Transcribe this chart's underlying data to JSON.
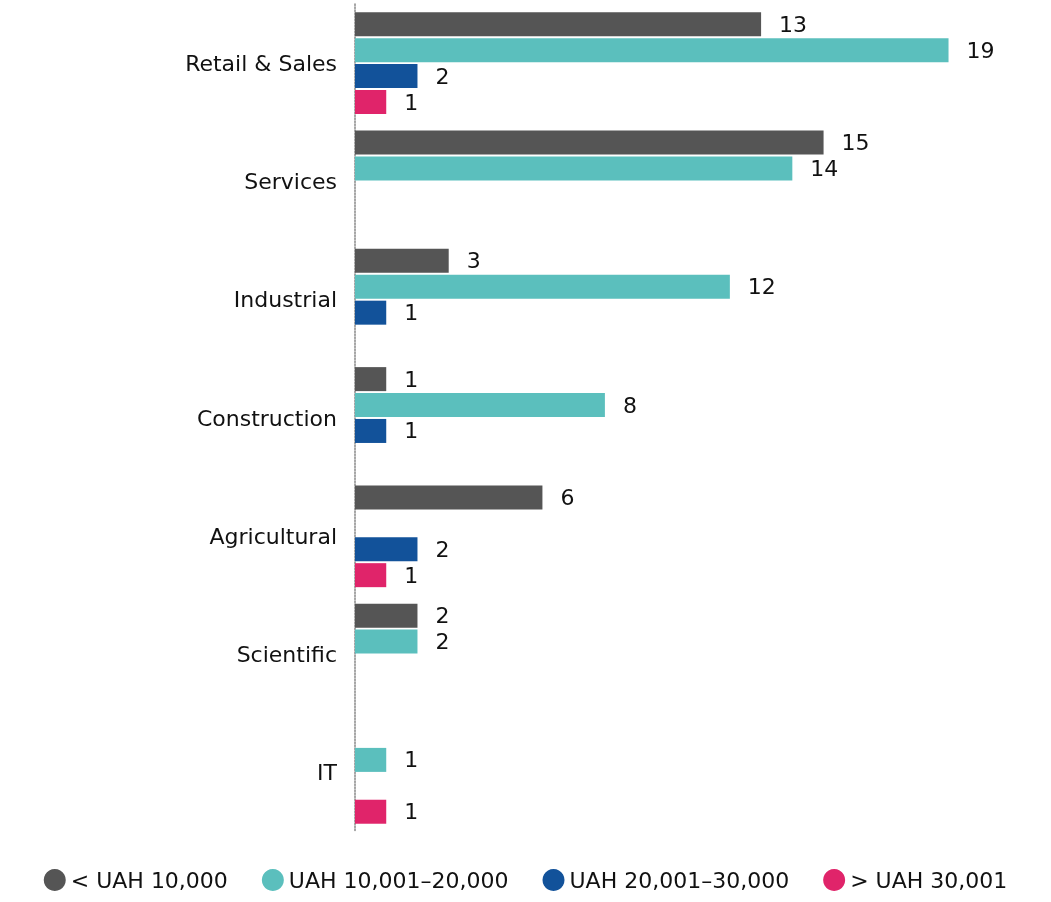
{
  "chart_data": {
    "type": "bar",
    "orientation": "horizontal",
    "categories": [
      "Retail & Sales",
      "Services",
      "Industrial",
      "Construction",
      "Agricultural",
      "Scientific",
      "IT"
    ],
    "series": [
      {
        "name": "< UAH 10,000",
        "color": "#555555",
        "values": [
          13,
          15,
          3,
          1,
          6,
          2,
          null
        ]
      },
      {
        "name": "UAH 10,001–20,000",
        "color": "#5bbfbd",
        "values": [
          19,
          14,
          12,
          8,
          null,
          2,
          1
        ]
      },
      {
        "name": "UAH 20,001–30,000",
        "color": "#12529a",
        "values": [
          2,
          null,
          1,
          1,
          2,
          null,
          null
        ]
      },
      {
        "name": "> UAH 30,001",
        "color": "#e0246a",
        "values": [
          1,
          null,
          null,
          null,
          1,
          null,
          1
        ]
      }
    ],
    "data_labels": true,
    "legend": "bottom"
  }
}
